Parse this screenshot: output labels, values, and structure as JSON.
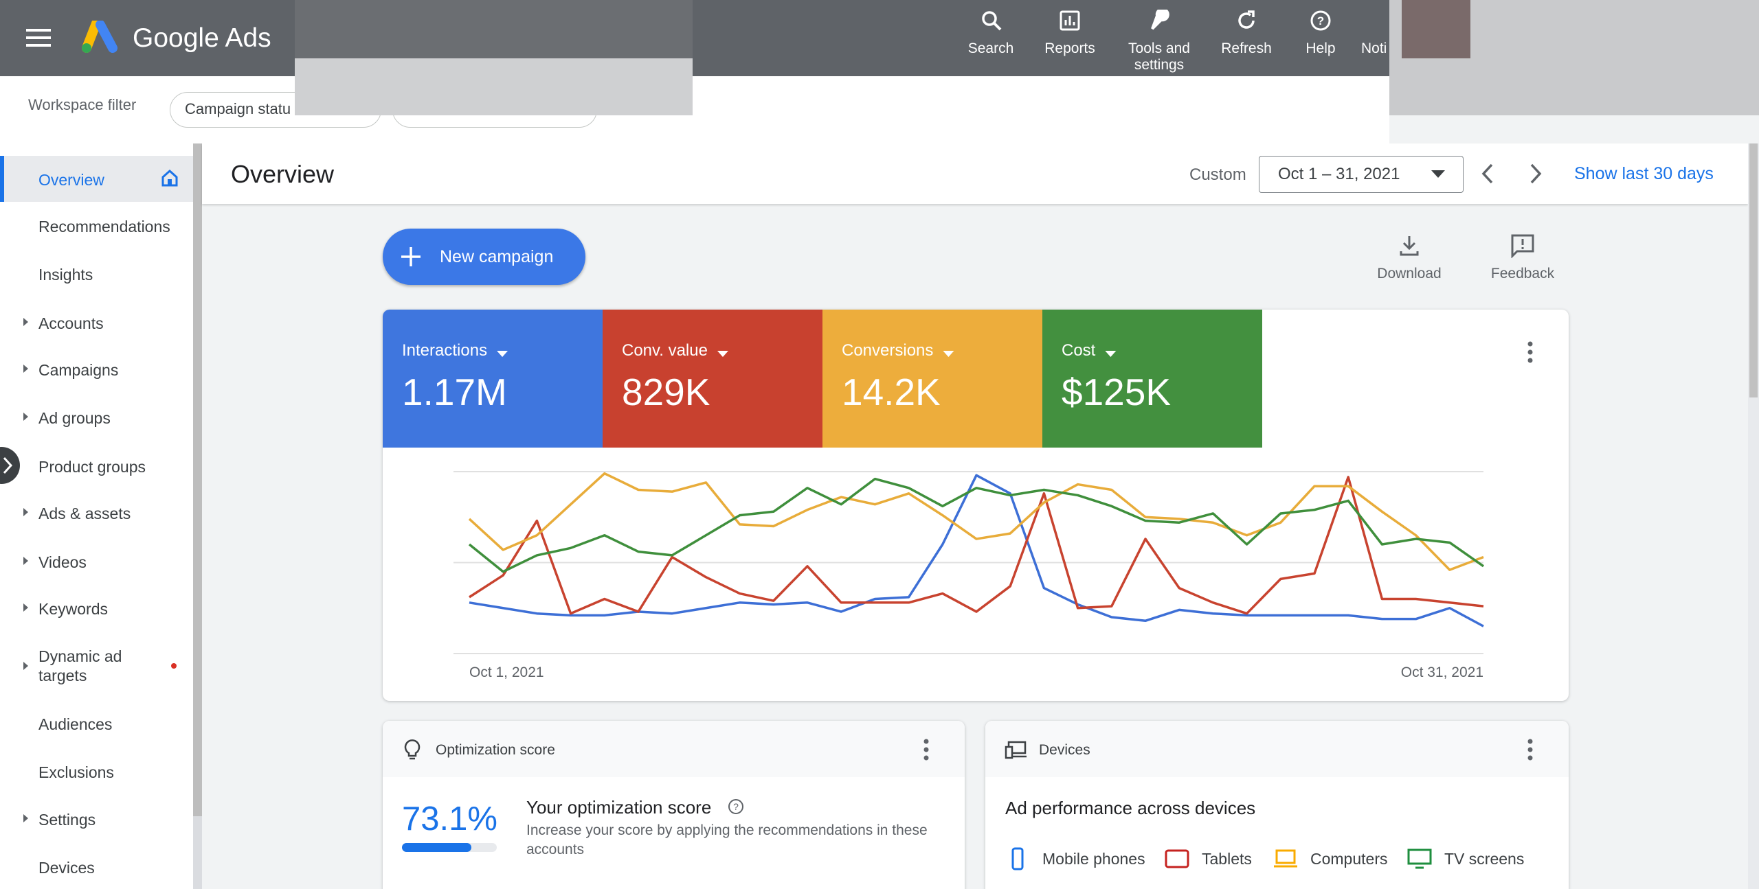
{
  "top_bar": {
    "product": "Google Ads",
    "nav": [
      "Search",
      "Reports",
      "Tools and settings",
      "Refresh",
      "Help",
      "Noti"
    ]
  },
  "filter_bar": {
    "label": "Workspace filter",
    "chips": [
      "Campaign statu"
    ]
  },
  "sidebar": {
    "items": [
      "Overview",
      "Recommendations",
      "Insights",
      "Accounts",
      "Campaigns",
      "Ad groups",
      "Product groups",
      "Ads & assets",
      "Videos",
      "Keywords",
      "Dynamic ad targets",
      "Audiences",
      "Exclusions",
      "Settings",
      "Devices"
    ]
  },
  "header": {
    "title": "Overview",
    "range_label": "Custom",
    "date_range": "Oct 1 – 31, 2021",
    "show_last": "Show last 30 days"
  },
  "actions": {
    "new_campaign": "New campaign",
    "download": "Download",
    "feedback": "Feedback"
  },
  "scorecard_values": [
    "1.17M",
    "829K",
    "14.2K",
    "$125K"
  ],
  "chart_data": {
    "type": "line",
    "categories": [
      "Oct 1, 2021",
      null,
      null,
      null,
      null,
      null,
      null,
      null,
      null,
      null,
      null,
      null,
      null,
      null,
      null,
      null,
      null,
      null,
      null,
      null,
      null,
      null,
      null,
      null,
      null,
      null,
      null,
      null,
      null,
      null,
      "Oct 31, 2021"
    ],
    "series": [
      {
        "name": "Interactions",
        "color": "#3d6fd6",
        "tile_color": "#3f76de",
        "values": [
          28,
          25,
          22,
          21,
          21,
          23,
          22,
          25,
          28,
          27,
          28,
          23,
          30,
          31,
          60,
          98,
          88,
          36,
          27,
          20,
          18,
          24,
          22,
          21,
          21,
          21,
          21,
          19,
          19,
          25,
          15
        ]
      },
      {
        "name": "Conv. value",
        "color": "#c8432f",
        "tile_color": "#c8412f",
        "values": [
          31,
          43,
          73,
          22,
          30,
          23,
          53,
          42,
          33,
          29,
          48,
          28,
          28,
          28,
          33,
          23,
          37,
          88,
          25,
          26,
          63,
          36,
          28,
          22,
          41,
          44,
          97,
          30,
          30,
          28,
          26
        ]
      },
      {
        "name": "Conversions",
        "color": "#e8ac3a",
        "tile_color": "#edad3c",
        "values": [
          74,
          57,
          65,
          82,
          99,
          90,
          89,
          94,
          71,
          70,
          79,
          86,
          82,
          88,
          76,
          63,
          66,
          83,
          93,
          90,
          75,
          74,
          72,
          65,
          72,
          92,
          92,
          78,
          65,
          46,
          53
        ]
      },
      {
        "name": "Cost",
        "color": "#3f8f3c",
        "tile_color": "#43903f",
        "values": [
          60,
          45,
          54,
          58,
          65,
          56,
          54,
          65,
          76,
          78,
          91,
          82,
          96,
          91,
          81,
          91,
          87,
          90,
          87,
          81,
          73,
          72,
          77,
          60,
          77,
          79,
          84,
          60,
          63,
          61,
          48
        ]
      }
    ],
    "ylim": [
      0,
      100
    ],
    "yticks": [
      0,
      50,
      100
    ],
    "show_tick_labels": false,
    "grid": true
  },
  "optimization": {
    "title": "Optimization score",
    "score": {
      "value": 73.1,
      "label": "73.1%"
    },
    "heading": "Your optimization score",
    "description": "Increase your score by applying the recommendations in these accounts"
  },
  "devices": {
    "title": "Devices",
    "heading": "Ad performance across devices",
    "legend": [
      "Mobile phones",
      "Tablets",
      "Computers",
      "TV screens"
    ]
  }
}
